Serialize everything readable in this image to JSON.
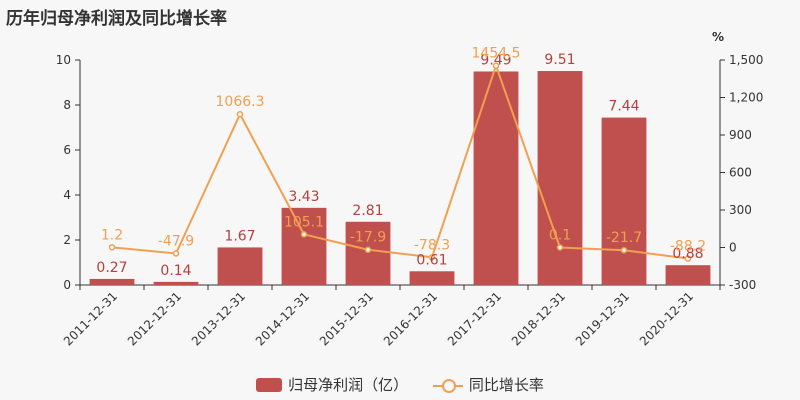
{
  "title": "历年归母净利润及同比增长率",
  "chart_data": {
    "type": "bar",
    "categories": [
      "2011-12-31",
      "2012-12-31",
      "2013-12-31",
      "2014-12-31",
      "2015-12-31",
      "2016-12-31",
      "2017-12-31",
      "2018-12-31",
      "2019-12-31",
      "2020-12-31"
    ],
    "series": [
      {
        "name": "归母净利润（亿）",
        "type": "bar",
        "axis": "left",
        "color": "#c0504d",
        "values": [
          0.27,
          0.14,
          1.67,
          3.43,
          2.81,
          0.61,
          9.49,
          9.51,
          7.44,
          0.88
        ],
        "labels": [
          "0.27",
          "0.14",
          "1.67",
          "3.43",
          "2.81",
          "0.61",
          "9.49",
          "9.51",
          "7.44",
          "0.88"
        ]
      },
      {
        "name": "同比增长率",
        "type": "line",
        "axis": "right",
        "color": "#f0a050",
        "values": [
          1.2,
          -47.9,
          1066.3,
          105.1,
          -17.9,
          -78.3,
          1454.5,
          0.1,
          -21.7,
          -88.2
        ],
        "labels": [
          "1.2",
          "-47.9",
          "1066.3",
          "105.1",
          "-17.9",
          "-78.3",
          "1454.5",
          "0.1",
          "-21.7",
          "-88.2"
        ]
      }
    ],
    "y_left": {
      "min": 0,
      "max": 10,
      "ticks": [
        "0",
        "2",
        "4",
        "6",
        "8",
        "10"
      ]
    },
    "y_right": {
      "min": -300,
      "max": 1500,
      "unit": "%",
      "ticks": [
        "-300",
        "0",
        "300",
        "600",
        "900",
        "1,200",
        "1,500"
      ]
    },
    "legend_position": "bottom"
  }
}
